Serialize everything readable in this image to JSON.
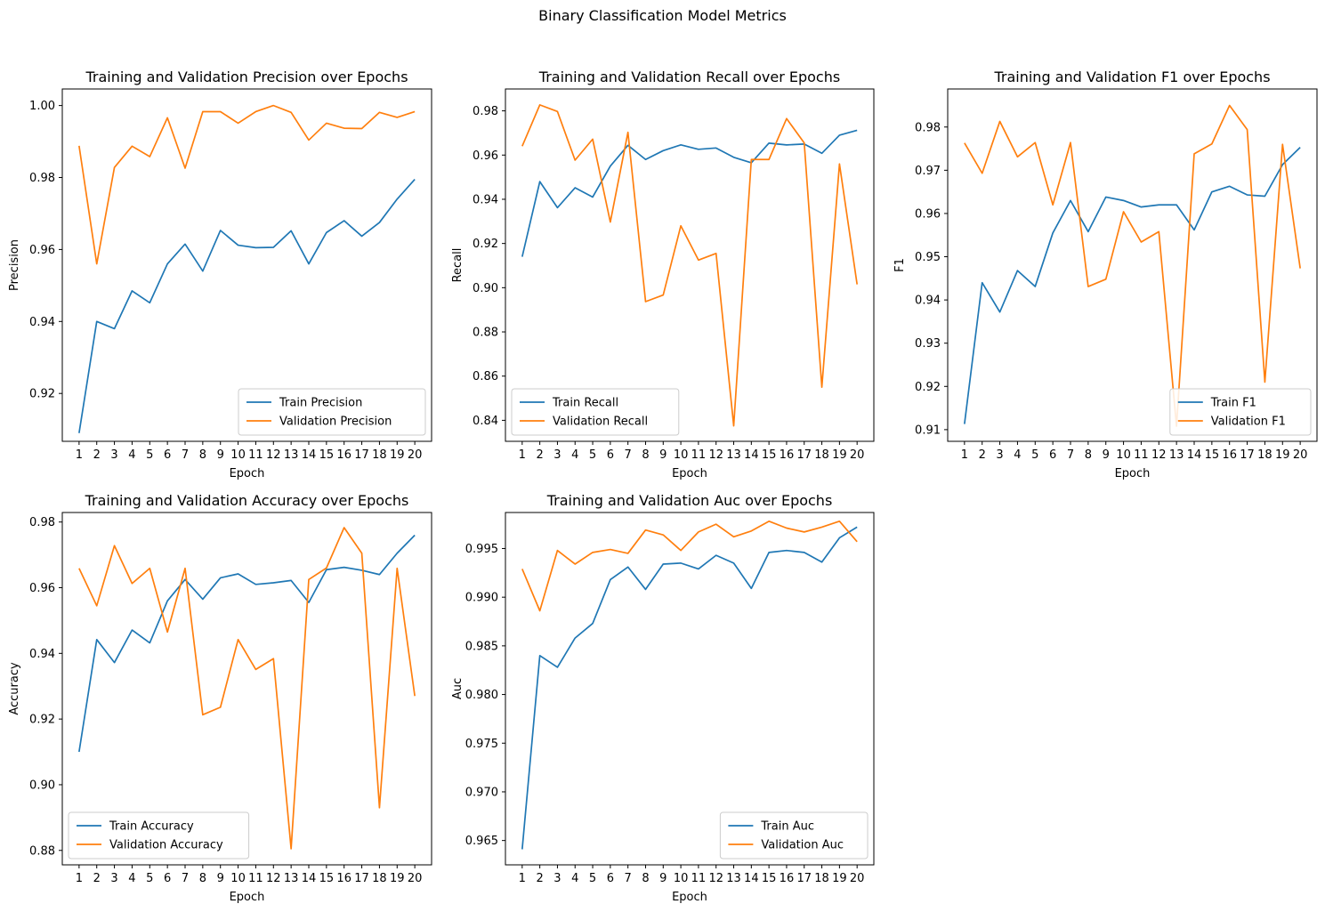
{
  "figure": {
    "suptitle": "Binary Classification Model Metrics"
  },
  "colors": {
    "train": "#1f77b4",
    "validation": "#ff7f0e"
  },
  "chart_data": [
    {
      "type": "line",
      "title": "Training and Validation Precision over Epochs",
      "xlabel": "Epoch",
      "ylabel": "Precision",
      "x": [
        1,
        2,
        3,
        4,
        5,
        6,
        7,
        8,
        9,
        10,
        11,
        12,
        13,
        14,
        15,
        16,
        17,
        18,
        19,
        20
      ],
      "ylim": [
        0.9067,
        1.0046
      ],
      "yticks": [
        0.92,
        0.94,
        0.96,
        0.98,
        1.0
      ],
      "ytick_labels": [
        "0.92",
        "0.94",
        "0.96",
        "0.98",
        "1.00"
      ],
      "legend": "lower right",
      "series": [
        {
          "name": "Train Precision",
          "values": [
            0.909,
            0.94,
            0.938,
            0.9485,
            0.9452,
            0.956,
            0.9615,
            0.954,
            0.9653,
            0.9612,
            0.9605,
            0.9606,
            0.9652,
            0.956,
            0.9647,
            0.968,
            0.9637,
            0.9675,
            0.974,
            0.9795
          ]
        },
        {
          "name": "Validation Precision",
          "values": [
            0.9888,
            0.956,
            0.9828,
            0.9887,
            0.9858,
            0.9966,
            0.9826,
            0.9983,
            0.9983,
            0.9951,
            0.9983,
            1.0,
            0.9981,
            0.9904,
            0.9951,
            0.9937,
            0.9936,
            0.9981,
            0.9967,
            0.9983
          ]
        }
      ]
    },
    {
      "type": "line",
      "title": "Training and Validation Recall over Epochs",
      "xlabel": "Epoch",
      "ylabel": "Recall",
      "x": [
        1,
        2,
        3,
        4,
        5,
        6,
        7,
        8,
        9,
        10,
        11,
        12,
        13,
        14,
        15,
        16,
        17,
        18,
        19,
        20
      ],
      "ylim": [
        0.8305,
        0.9899
      ],
      "yticks": [
        0.84,
        0.86,
        0.88,
        0.9,
        0.92,
        0.94,
        0.96,
        0.98
      ],
      "ytick_labels": [
        "0.84",
        "0.86",
        "0.88",
        "0.90",
        "0.92",
        "0.94",
        "0.96",
        "0.98"
      ],
      "legend": "lower left",
      "series": [
        {
          "name": "Train Recall",
          "values": [
            0.914,
            0.948,
            0.9362,
            0.9452,
            0.941,
            0.955,
            0.9644,
            0.958,
            0.962,
            0.9646,
            0.9626,
            0.9632,
            0.959,
            0.9565,
            0.9654,
            0.9646,
            0.965,
            0.9608,
            0.969,
            0.9712
          ]
        },
        {
          "name": "Validation Recall",
          "values": [
            0.964,
            0.9827,
            0.9797,
            0.9577,
            0.9672,
            0.9297,
            0.9703,
            0.8937,
            0.8967,
            0.928,
            0.9125,
            0.9155,
            0.8375,
            0.958,
            0.958,
            0.9765,
            0.9655,
            0.855,
            0.956,
            0.9015
          ]
        }
      ]
    },
    {
      "type": "line",
      "title": "Training and Validation F1 over Epochs",
      "xlabel": "Epoch",
      "ylabel": "F1",
      "x": [
        1,
        2,
        3,
        4,
        5,
        6,
        7,
        8,
        9,
        10,
        11,
        12,
        13,
        14,
        15,
        16,
        17,
        18,
        19,
        20
      ],
      "ylim": [
        0.9073,
        0.9888
      ],
      "yticks": [
        0.91,
        0.92,
        0.93,
        0.94,
        0.95,
        0.96,
        0.97,
        0.98
      ],
      "ytick_labels": [
        "0.91",
        "0.92",
        "0.93",
        "0.94",
        "0.95",
        "0.96",
        "0.97",
        "0.98"
      ],
      "legend": "lower right",
      "series": [
        {
          "name": "Train F1",
          "values": [
            0.9113,
            0.944,
            0.9372,
            0.9468,
            0.9431,
            0.9555,
            0.963,
            0.9558,
            0.9638,
            0.963,
            0.9615,
            0.962,
            0.962,
            0.9562,
            0.965,
            0.9663,
            0.9643,
            0.964,
            0.9713,
            0.9753
          ]
        },
        {
          "name": "Validation F1",
          "values": [
            0.9763,
            0.9693,
            0.9813,
            0.9731,
            0.9764,
            0.962,
            0.9764,
            0.9431,
            0.9448,
            0.9604,
            0.9534,
            0.9558,
            0.9108,
            0.9738,
            0.9761,
            0.985,
            0.9794,
            0.921,
            0.976,
            0.9473
          ]
        }
      ]
    },
    {
      "type": "line",
      "title": "Training and Validation Accuracy over Epochs",
      "xlabel": "Epoch",
      "ylabel": "Accuracy",
      "x": [
        1,
        2,
        3,
        4,
        5,
        6,
        7,
        8,
        9,
        10,
        11,
        12,
        13,
        14,
        15,
        16,
        17,
        18,
        19,
        20
      ],
      "ylim": [
        0.8756,
        0.9829
      ],
      "yticks": [
        0.88,
        0.9,
        0.92,
        0.94,
        0.96,
        0.98
      ],
      "ytick_labels": [
        "0.88",
        "0.90",
        "0.92",
        "0.94",
        "0.96",
        "0.98"
      ],
      "legend": "lower left",
      "series": [
        {
          "name": "Train Accuracy",
          "values": [
            0.91,
            0.9442,
            0.9372,
            0.9471,
            0.9432,
            0.956,
            0.9625,
            0.9565,
            0.963,
            0.9642,
            0.961,
            0.9615,
            0.9622,
            0.9555,
            0.9655,
            0.9662,
            0.9653,
            0.964,
            0.9705,
            0.976
          ]
        },
        {
          "name": "Validation Accuracy",
          "values": [
            0.9659,
            0.9545,
            0.9728,
            0.9613,
            0.9659,
            0.9465,
            0.9659,
            0.9213,
            0.9236,
            0.9442,
            0.9351,
            0.9384,
            0.8805,
            0.9625,
            0.966,
            0.9783,
            0.9705,
            0.893,
            0.9659,
            0.927
          ]
        }
      ]
    },
    {
      "type": "line",
      "title": "Training and Validation Auc over Epochs",
      "xlabel": "Epoch",
      "ylabel": "Auc",
      "x": [
        1,
        2,
        3,
        4,
        5,
        6,
        7,
        8,
        9,
        10,
        11,
        12,
        13,
        14,
        15,
        16,
        17,
        18,
        19,
        20
      ],
      "ylim": [
        0.9625,
        0.9987
      ],
      "yticks": [
        0.965,
        0.97,
        0.975,
        0.98,
        0.985,
        0.99,
        0.995
      ],
      "ytick_labels": [
        "0.965",
        "0.970",
        "0.975",
        "0.980",
        "0.985",
        "0.990",
        "0.995"
      ],
      "legend": "lower right",
      "series": [
        {
          "name": "Train Auc",
          "values": [
            0.9641,
            0.984,
            0.9828,
            0.9858,
            0.9873,
            0.9918,
            0.9931,
            0.9908,
            0.9934,
            0.9935,
            0.9929,
            0.9943,
            0.9935,
            0.9909,
            0.9946,
            0.9948,
            0.9946,
            0.9936,
            0.9961,
            0.9972
          ]
        },
        {
          "name": "Validation Auc",
          "values": [
            0.9929,
            0.9886,
            0.9948,
            0.9934,
            0.9946,
            0.9949,
            0.9945,
            0.9969,
            0.9964,
            0.9948,
            0.9967,
            0.9975,
            0.9962,
            0.9968,
            0.9978,
            0.9971,
            0.9967,
            0.9972,
            0.9978,
            0.9957
          ]
        }
      ]
    }
  ]
}
